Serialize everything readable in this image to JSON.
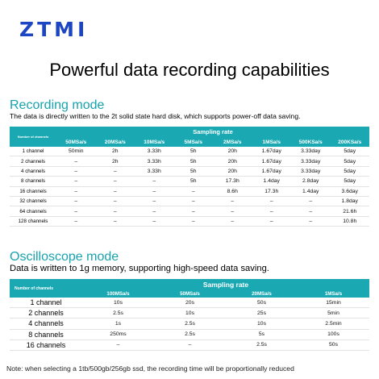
{
  "logo": "ZTMI",
  "headline": "Powerful data recording capabilities",
  "recording": {
    "title": "Recording mode",
    "subtitle": "The data is directly written to the 2t solid state hard disk, which supports power-off data saving.",
    "group_header": "Sampling rate",
    "corner_header": "Number of channels",
    "columns": [
      "50MSa/s",
      "20MSa/s",
      "10MSa/s",
      "5MSa/s",
      "2MSa/s",
      "1MSa/s",
      "500KSa/s",
      "200KSa/s"
    ],
    "rows": [
      {
        "label": "1 channel",
        "cells": [
          "50min",
          "2h",
          "3.33h",
          "5h",
          "20h",
          "1.67day",
          "3.33day",
          "5day"
        ]
      },
      {
        "label": "2 channels",
        "cells": [
          "–",
          "2h",
          "3.33h",
          "5h",
          "20h",
          "1.67day",
          "3.33day",
          "5day"
        ]
      },
      {
        "label": "4 channels",
        "cells": [
          "–",
          "–",
          "3.33h",
          "5h",
          "20h",
          "1.67day",
          "3.33day",
          "5day"
        ]
      },
      {
        "label": "8 channels",
        "cells": [
          "–",
          "–",
          "–",
          "5h",
          "17.3h",
          "1.4day",
          "2.8day",
          "5day"
        ]
      },
      {
        "label": "16 channels",
        "cells": [
          "–",
          "–",
          "–",
          "–",
          "8.6h",
          "17.3h",
          "1.4day",
          "3.6day"
        ]
      },
      {
        "label": "32 channels",
        "cells": [
          "–",
          "–",
          "–",
          "–",
          "–",
          "–",
          "–",
          "1.8day"
        ]
      },
      {
        "label": "64 channels",
        "cells": [
          "–",
          "–",
          "–",
          "–",
          "–",
          "–",
          "–",
          "21.6h"
        ]
      },
      {
        "label": "128 channels",
        "cells": [
          "–",
          "–",
          "–",
          "–",
          "–",
          "–",
          "–",
          "10.8h"
        ]
      }
    ]
  },
  "oscilloscope": {
    "title": "Oscilloscope mode",
    "subtitle": "Data is written to 1g memory, supporting high-speed data saving.",
    "group_header": "Sampling rate",
    "corner_header": "Number of channels",
    "columns": [
      "100MSa/s",
      "50MSa/s",
      "20MSa/s",
      "1MSa/s"
    ],
    "rows": [
      {
        "label": "1 channel",
        "cells": [
          "10s",
          "20s",
          "50s",
          "15min"
        ]
      },
      {
        "label": "2 channels",
        "cells": [
          "2.5s",
          "10s",
          "25s",
          "5min"
        ]
      },
      {
        "label": "4 channels",
        "cells": [
          "1s",
          "2.5s",
          "10s",
          "2.5min"
        ]
      },
      {
        "label": "8 channels",
        "cells": [
          "250ms",
          "2.5s",
          "5s",
          "100s"
        ]
      },
      {
        "label": "16 channels",
        "cells": [
          "–",
          "–",
          "2.5s",
          "50s"
        ]
      }
    ]
  },
  "note": "Note: when selecting a 1tb/500gb/256gb ssd, the recording time will be proportionally reduced"
}
